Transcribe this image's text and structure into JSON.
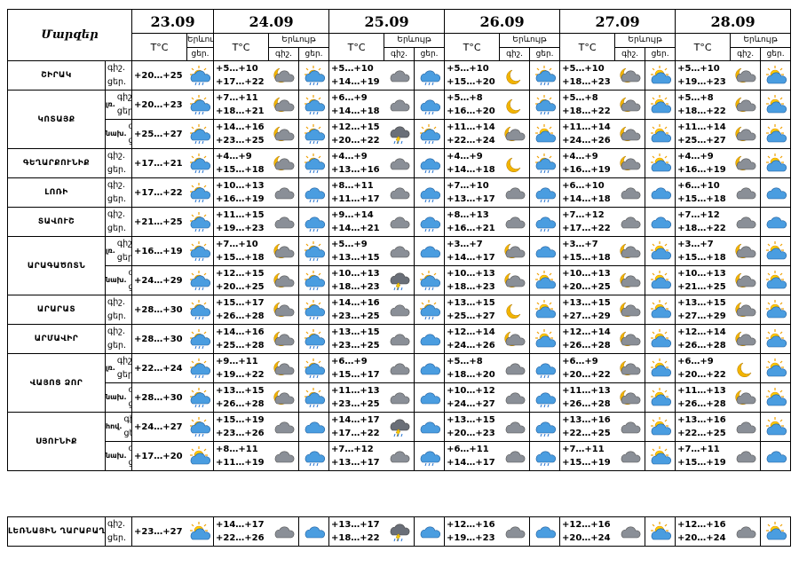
{
  "header": {
    "region_label": "Մարզեր",
    "dates": [
      "23.09",
      "24.09",
      "25.09",
      "26.09",
      "27.09",
      "28.09"
    ],
    "temp_label": "T°C",
    "phenomenon_label": "Երևույթ",
    "night_short": "գիշ.",
    "day_short": "ցեր."
  },
  "regions": [
    {
      "name": "ՇԻՐԱԿ",
      "sub": "",
      "t": [
        [
          "",
          "+20…+25"
        ],
        [
          "+5…+10",
          "+17…+22"
        ],
        [
          "+5…+10",
          "+14…+19"
        ],
        [
          "+5…+10",
          "+15…+20"
        ],
        [
          "+5…+10",
          "+18…+23"
        ],
        [
          "+5…+10",
          "+19…+23"
        ]
      ],
      "icons": [
        [
          "",
          "sun-cloud-rain"
        ],
        [
          "moon-cloud",
          "sun-cloud-rain"
        ],
        [
          "cloud-dark",
          "cloud-rain"
        ],
        [
          "moon",
          "sun-cloud-rain"
        ],
        [
          "moon-cloud",
          "sun-cloud"
        ],
        [
          "moon-cloud",
          "sun-cloud"
        ]
      ]
    },
    {
      "name": "ԿՈՏԱՅՔ",
      "sub": "լռ.",
      "t": [
        [
          "",
          "+20…+23"
        ],
        [
          "+7…+11",
          "+18…+21"
        ],
        [
          "+6…+9",
          "+14…+18"
        ],
        [
          "+5…+8",
          "+16…+20"
        ],
        [
          "+5…+8",
          "+18…+22"
        ],
        [
          "+5…+8",
          "+18…+22"
        ]
      ],
      "icons": [
        [
          "",
          "sun-cloud-rain"
        ],
        [
          "moon-cloud",
          "sun-cloud-rain"
        ],
        [
          "cloud-dark",
          "cloud-rain"
        ],
        [
          "moon",
          "sun-cloud-rain"
        ],
        [
          "moon-cloud",
          "sun-cloud"
        ],
        [
          "moon-cloud",
          "sun-cloud"
        ]
      ]
    },
    {
      "name": "",
      "sub": "նախ.",
      "t": [
        [
          "",
          "+25…+27"
        ],
        [
          "+14…+16",
          "+23…+25"
        ],
        [
          "+12…+15",
          "+20…+22"
        ],
        [
          "+11…+14",
          "+22…+24"
        ],
        [
          "+11…+14",
          "+24…+26"
        ],
        [
          "+11…+14",
          "+25…+27"
        ]
      ],
      "icons": [
        [
          "",
          "sun-cloud-rain"
        ],
        [
          "moon-cloud",
          "sun-cloud-rain"
        ],
        [
          "cloud-thunder",
          "sun-cloud-rain"
        ],
        [
          "moon-cloud",
          "sun-cloud"
        ],
        [
          "moon-cloud",
          "sun-cloud"
        ],
        [
          "moon-cloud",
          "sun-cloud"
        ]
      ]
    },
    {
      "name": "ԳԵՂԱՐՔՈՒՆԻՔ",
      "sub": "",
      "t": [
        [
          "",
          "+17…+21"
        ],
        [
          "+4…+9",
          "+15…+18"
        ],
        [
          "+4…+9",
          "+13…+16"
        ],
        [
          "+4…+9",
          "+14…+18"
        ],
        [
          "+4…+9",
          "+16…+19"
        ],
        [
          "+4…+9",
          "+16…+19"
        ]
      ],
      "icons": [
        [
          "",
          "sun-cloud-rain"
        ],
        [
          "moon-cloud",
          "sun-cloud-rain"
        ],
        [
          "cloud-dark",
          "cloud-rain"
        ],
        [
          "moon",
          "sun-cloud-rain"
        ],
        [
          "moon-cloud",
          "sun-cloud"
        ],
        [
          "moon-cloud",
          "sun-cloud"
        ]
      ]
    },
    {
      "name": "ԼՈՌԻ",
      "sub": "",
      "t": [
        [
          "",
          "+17…+22"
        ],
        [
          "+10…+13",
          "+16…+19"
        ],
        [
          "+8…+11",
          "+11…+17"
        ],
        [
          "+7…+10",
          "+13…+17"
        ],
        [
          "+6…+10",
          "+14…+18"
        ],
        [
          "+6…+10",
          "+15…+18"
        ]
      ],
      "icons": [
        [
          "",
          "sun-cloud-rain"
        ],
        [
          "cloud-dark",
          "cloud-rain"
        ],
        [
          "cloud-dark",
          "cloud-rain"
        ],
        [
          "cloud-dark",
          "cloud-rain"
        ],
        [
          "cloud-dark",
          "cloud-blue"
        ],
        [
          "cloud-dark",
          "cloud-blue"
        ]
      ]
    },
    {
      "name": "ՏԱՎՈՒՇ",
      "sub": "",
      "t": [
        [
          "",
          "+21…+25"
        ],
        [
          "+11…+15",
          "+19…+23"
        ],
        [
          "+9…+14",
          "+14…+21"
        ],
        [
          "+8…+13",
          "+16…+21"
        ],
        [
          "+7…+12",
          "+17…+22"
        ],
        [
          "+7…+12",
          "+18…+22"
        ]
      ],
      "icons": [
        [
          "",
          "sun-cloud-rain"
        ],
        [
          "cloud-dark",
          "cloud-rain"
        ],
        [
          "cloud-dark",
          "cloud-rain"
        ],
        [
          "cloud-dark",
          "cloud-rain"
        ],
        [
          "cloud-dark",
          "cloud-blue"
        ],
        [
          "cloud-dark",
          "cloud-blue"
        ]
      ]
    },
    {
      "name": "ԱՐԱԳԱԾՈՏՆ",
      "sub": "լռ.",
      "t": [
        [
          "",
          "+16…+19"
        ],
        [
          "+7…+10",
          "+15…+18"
        ],
        [
          "+5…+9",
          "+13…+15"
        ],
        [
          "+3…+7",
          "+14…+17"
        ],
        [
          "+3…+7",
          "+15…+18"
        ],
        [
          "+3…+7",
          "+15…+18"
        ]
      ],
      "icons": [
        [
          "",
          "sun-cloud-rain"
        ],
        [
          "moon-cloud",
          "sun-cloud-rain"
        ],
        [
          "cloud-dark",
          "cloud-blue"
        ],
        [
          "moon-cloud",
          "cloud-blue"
        ],
        [
          "moon-cloud",
          "sun-cloud"
        ],
        [
          "moon-cloud",
          "sun-cloud"
        ]
      ]
    },
    {
      "name": "",
      "sub": "նախ.",
      "t": [
        [
          "",
          "+24…+29"
        ],
        [
          "+12…+15",
          "+20…+25"
        ],
        [
          "+10…+13",
          "+18…+23"
        ],
        [
          "+10…+13",
          "+18…+23"
        ],
        [
          "+10…+13",
          "+20…+25"
        ],
        [
          "+10…+13",
          "+21…+25"
        ]
      ],
      "icons": [
        [
          "",
          "sun-cloud-rain"
        ],
        [
          "moon-cloud",
          "sun-cloud-rain"
        ],
        [
          "cloud-thunder",
          "sun-cloud-rain"
        ],
        [
          "moon-cloud",
          "sun-cloud"
        ],
        [
          "moon-cloud",
          "sun-cloud"
        ],
        [
          "moon-cloud",
          "sun-cloud"
        ]
      ]
    },
    {
      "name": "ԱՐԱՐԱՏ",
      "sub": "",
      "t": [
        [
          "",
          "+28…+30"
        ],
        [
          "+15…+17",
          "+26…+28"
        ],
        [
          "+14…+16",
          "+23…+25"
        ],
        [
          "+13…+15",
          "+25…+27"
        ],
        [
          "+13…+15",
          "+27…+29"
        ],
        [
          "+13…+15",
          "+27…+29"
        ]
      ],
      "icons": [
        [
          "",
          "sun-cloud-rain"
        ],
        [
          "moon-cloud",
          "sun-cloud-rain"
        ],
        [
          "cloud-dark",
          "sun-cloud-rain"
        ],
        [
          "moon",
          "sun-cloud"
        ],
        [
          "moon-cloud",
          "sun-cloud"
        ],
        [
          "moon-cloud",
          "sun-cloud"
        ]
      ]
    },
    {
      "name": "ԱՐՄԱՎԻՐ",
      "sub": "",
      "t": [
        [
          "",
          "+28…+30"
        ],
        [
          "+14…+16",
          "+25…+28"
        ],
        [
          "+13…+15",
          "+23…+25"
        ],
        [
          "+12…+14",
          "+24…+26"
        ],
        [
          "+12…+14",
          "+26…+28"
        ],
        [
          "+12…+14",
          "+26…+28"
        ]
      ],
      "icons": [
        [
          "",
          "sun-cloud-rain"
        ],
        [
          "moon-cloud",
          "sun-cloud-rain"
        ],
        [
          "cloud-dark",
          "cloud-blue"
        ],
        [
          "moon-cloud",
          "sun-cloud"
        ],
        [
          "moon-cloud",
          "sun-cloud"
        ],
        [
          "moon-cloud",
          "sun-cloud"
        ]
      ]
    },
    {
      "name": "ՎԱՅՈՑ ՁՈՐ",
      "sub": "լռ.",
      "t": [
        [
          "",
          "+22…+24"
        ],
        [
          "+9…+11",
          "+19…+22"
        ],
        [
          "+6…+9",
          "+15…+17"
        ],
        [
          "+5…+8",
          "+18…+20"
        ],
        [
          "+6…+9",
          "+20…+22"
        ],
        [
          "+6…+9",
          "+20…+22"
        ]
      ],
      "icons": [
        [
          "",
          "sun-cloud-rain"
        ],
        [
          "moon-cloud",
          "sun-cloud-rain"
        ],
        [
          "cloud-dark",
          "cloud-blue"
        ],
        [
          "cloud-dark",
          "cloud-rain"
        ],
        [
          "moon-cloud",
          "sun-cloud"
        ],
        [
          "moon",
          "sun-cloud"
        ]
      ]
    },
    {
      "name": "",
      "sub": "նախ.",
      "t": [
        [
          "",
          "+28…+30"
        ],
        [
          "+13…+15",
          "+26…+28"
        ],
        [
          "+11…+13",
          "+23…+25"
        ],
        [
          "+10…+12",
          "+24…+27"
        ],
        [
          "+11…+13",
          "+26…+28"
        ],
        [
          "+11…+13",
          "+26…+28"
        ]
      ],
      "icons": [
        [
          "",
          "sun-cloud-rain"
        ],
        [
          "moon-cloud",
          "sun-cloud-rain"
        ],
        [
          "cloud-dark",
          "cloud-blue"
        ],
        [
          "cloud-dark",
          "cloud-rain"
        ],
        [
          "moon-cloud",
          "sun-cloud"
        ],
        [
          "moon-cloud",
          "sun-cloud"
        ]
      ]
    },
    {
      "name": "ՍՅՈՒՆԻՔ",
      "sub": "հով.",
      "t": [
        [
          "",
          "+24…+27"
        ],
        [
          "+15…+19",
          "+23…+26"
        ],
        [
          "+14…+17",
          "+17…+22"
        ],
        [
          "+13…+15",
          "+20…+23"
        ],
        [
          "+13…+16",
          "+22…+25"
        ],
        [
          "+13…+16",
          "+22…+25"
        ]
      ],
      "icons": [
        [
          "",
          "sun-cloud-rain"
        ],
        [
          "cloud-dark",
          "cloud-blue"
        ],
        [
          "cloud-thunder",
          "cloud-blue"
        ],
        [
          "cloud-dark",
          "cloud-rain"
        ],
        [
          "cloud-dark",
          "sun-cloud"
        ],
        [
          "cloud-dark",
          "sun-cloud"
        ]
      ]
    },
    {
      "name": "",
      "sub": "նախ.",
      "t": [
        [
          "",
          "+17…+20"
        ],
        [
          "+8…+11",
          "+11…+19"
        ],
        [
          "+7…+12",
          "+13…+17"
        ],
        [
          "+6…+11",
          "+14…+17"
        ],
        [
          "+7…+11",
          "+15…+19"
        ],
        [
          "+7…+11",
          "+15…+19"
        ]
      ],
      "icons": [
        [
          "",
          "sun-cloud"
        ],
        [
          "cloud-dark",
          "cloud-rain"
        ],
        [
          "cloud-dark",
          "cloud-rain"
        ],
        [
          "cloud-dark",
          "cloud-rain"
        ],
        [
          "cloud-dark",
          "sun-cloud"
        ],
        [
          "cloud-dark",
          "cloud-blue"
        ]
      ]
    }
  ],
  "leo": {
    "name": "ԼԵՌՆԱՅԻՆ ՂԱՐԱԲԱՂ",
    "t": [
      [
        "",
        "+23…+27"
      ],
      [
        "+14…+17",
        "+22…+26"
      ],
      [
        "+13…+17",
        "+18…+22"
      ],
      [
        "+12…+16",
        "+19…+23"
      ],
      [
        "+12…+16",
        "+20…+24"
      ],
      [
        "+12…+16",
        "+20…+24"
      ]
    ],
    "icons": [
      [
        "",
        "sun-cloud"
      ],
      [
        "cloud-dark",
        "cloud-blue"
      ],
      [
        "cloud-thunder",
        "cloud-blue"
      ],
      [
        "cloud-dark",
        "cloud-blue"
      ],
      [
        "cloud-dark",
        "sun-cloud"
      ],
      [
        "cloud-dark",
        "sun-cloud"
      ]
    ]
  }
}
